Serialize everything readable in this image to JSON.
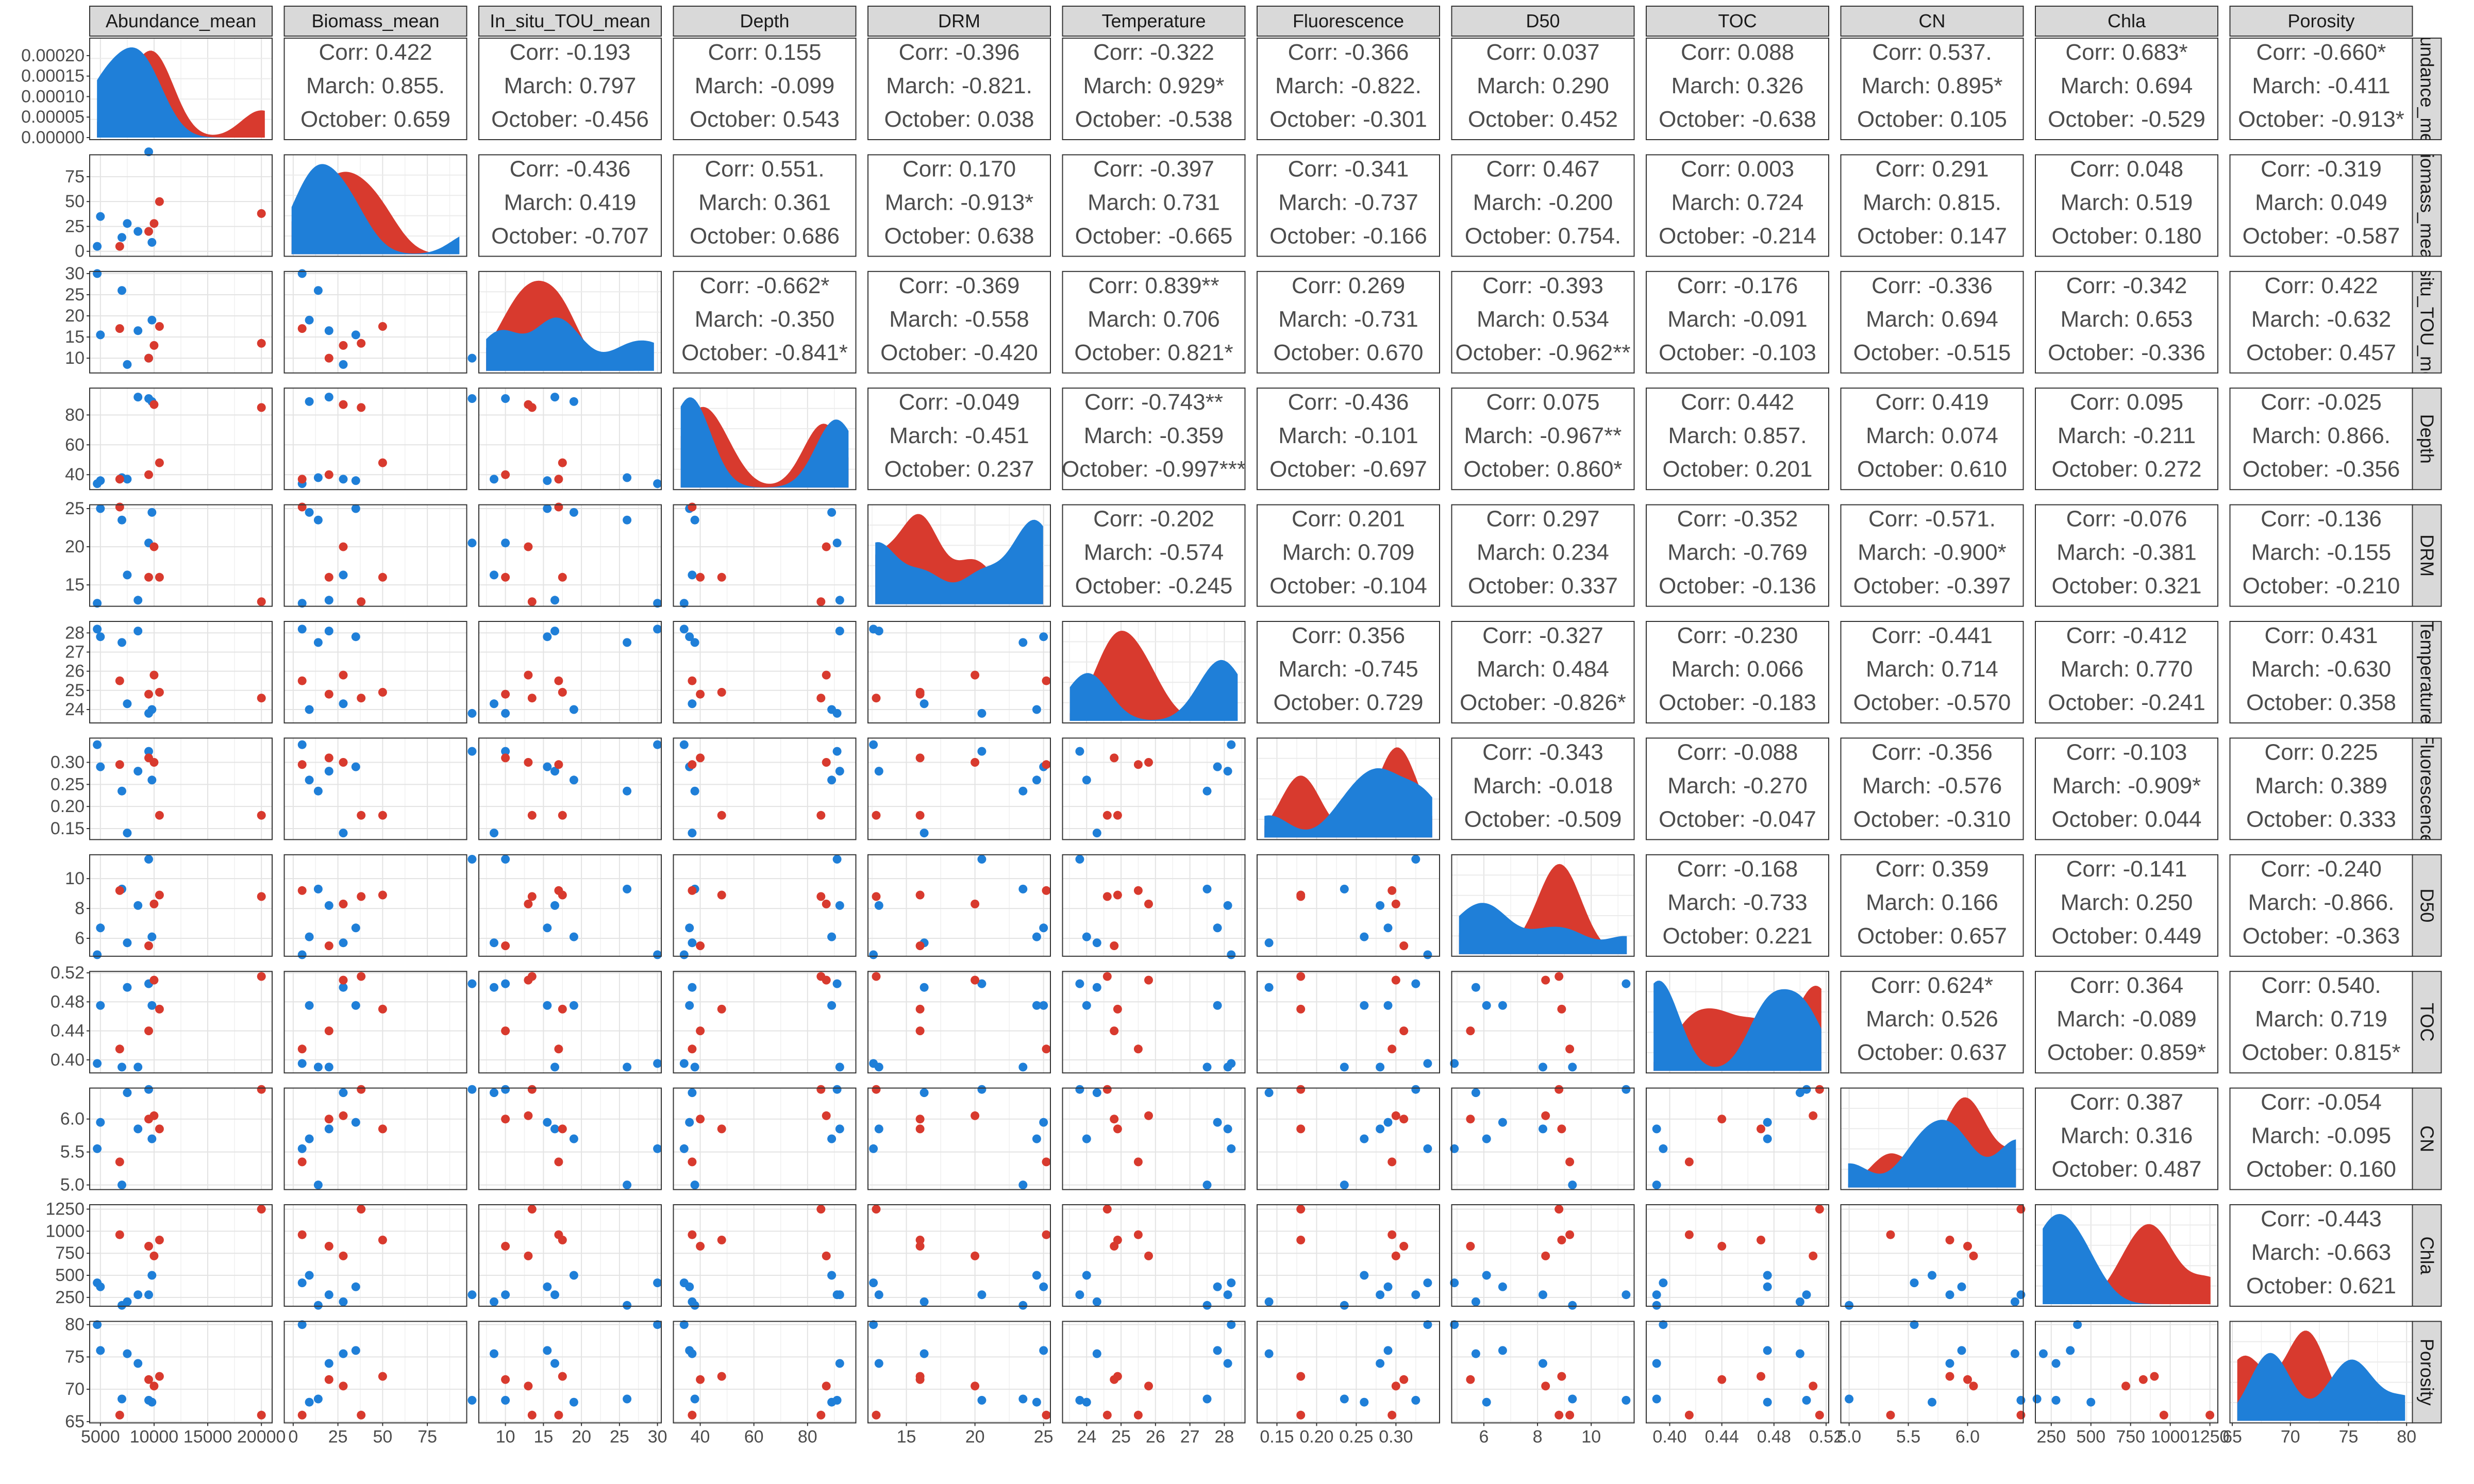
{
  "chart_data": {
    "type": "scatter",
    "title": "",
    "legend": "none",
    "grid": true,
    "groups": [
      {
        "key": "March",
        "color": "#d83a2e"
      },
      {
        "key": "October",
        "color": "#1f7fd8"
      }
    ],
    "variables": [
      {
        "name": "Abundance_mean",
        "row_label": "Abundance_mean",
        "range": [
          4000,
          21000
        ],
        "ticks": [
          5000,
          10000,
          15000,
          20000
        ],
        "tick_labels": [
          "5000",
          "10000",
          "15000",
          "20000"
        ]
      },
      {
        "name": "Biomass_mean",
        "row_label": "Biomass_mean",
        "range": [
          -5,
          97
        ],
        "ticks": [
          0,
          25,
          50,
          75
        ],
        "tick_labels": [
          "0",
          "25",
          "50",
          "75"
        ]
      },
      {
        "name": "In_situ_TOU_mean",
        "row_label": "In_situ_TOU_mean",
        "range": [
          6.5,
          30.5
        ],
        "ticks": [
          10,
          15,
          20,
          25,
          30
        ],
        "tick_labels": [
          "10",
          "15",
          "20",
          "25",
          "30"
        ]
      },
      {
        "name": "Depth",
        "row_label": "Depth",
        "range": [
          30,
          98
        ],
        "ticks": [
          40,
          60,
          80
        ],
        "tick_labels": [
          "40",
          "60",
          "80"
        ]
      },
      {
        "name": "DRM",
        "row_label": "DRM",
        "range": [
          12.2,
          25.5
        ],
        "ticks": [
          15,
          20,
          25
        ],
        "tick_labels": [
          "15",
          "20",
          "25"
        ]
      },
      {
        "name": "Temperature",
        "row_label": "Temperature",
        "range": [
          23.3,
          28.6
        ],
        "ticks": [
          24,
          25,
          26,
          27,
          28
        ],
        "tick_labels": [
          "24",
          "25",
          "26",
          "27",
          "28"
        ]
      },
      {
        "name": "Fluorescence",
        "row_label": "Fluorescence",
        "range": [
          0.125,
          0.355
        ],
        "ticks": [
          0.15,
          0.2,
          0.25,
          0.3
        ],
        "tick_labels": [
          "0.15",
          "0.20",
          "0.25",
          "0.30"
        ]
      },
      {
        "name": "D50",
        "row_label": "D50",
        "range": [
          4.8,
          11.6
        ],
        "ticks": [
          6,
          8,
          10
        ],
        "tick_labels": [
          "6",
          "8",
          "10"
        ]
      },
      {
        "name": "TOC",
        "row_label": "TOC",
        "range": [
          0.382,
          0.522
        ],
        "ticks": [
          0.4,
          0.44,
          0.48,
          0.52
        ],
        "tick_labels": [
          "0.40",
          "0.44",
          "0.48",
          "0.52"
        ]
      },
      {
        "name": "CN",
        "row_label": "CN",
        "range": [
          4.93,
          6.47
        ],
        "ticks": [
          5.0,
          5.5,
          6.0
        ],
        "tick_labels": [
          "5.0",
          "5.5",
          "6.0"
        ]
      },
      {
        "name": "Chla",
        "row_label": "Chla",
        "range": [
          150,
          1300
        ],
        "ticks": [
          250,
          500,
          750,
          1000,
          1250
        ],
        "tick_labels": [
          "250",
          "500",
          "750",
          "1000",
          "1250"
        ]
      },
      {
        "name": "Porosity",
        "row_label": "Porosity",
        "range": [
          64.8,
          80.5
        ],
        "ticks": [
          65,
          70,
          75,
          80
        ],
        "tick_labels": [
          "65",
          "70",
          "75",
          "80"
        ]
      }
    ],
    "density_y_ticks": [
      0,
      5e-05,
      0.0001,
      0.00015,
      0.0002
    ],
    "density_y_tick_labels": [
      "0.00000",
      "0.00005",
      "0.00010",
      "0.00015",
      "0.00020"
    ],
    "samples": [
      {
        "group": "October",
        "values": [
          4700,
          5,
          30,
          34,
          12.6,
          28.2,
          0.34,
          4.9,
          0.395,
          5.55,
          415,
          80
        ]
      },
      {
        "group": "October",
        "values": [
          5000,
          35,
          15.5,
          36,
          25,
          27.8,
          0.29,
          6.7,
          0.475,
          5.95,
          370,
          76
        ]
      },
      {
        "group": "October",
        "values": [
          7000,
          14,
          26,
          38,
          23.5,
          27.5,
          0.235,
          9.3,
          0.39,
          5.0,
          160,
          68.5
        ]
      },
      {
        "group": "October",
        "values": [
          7500,
          28,
          8.5,
          37,
          16.3,
          24.3,
          0.14,
          5.7,
          0.5,
          6.4,
          200,
          75.5
        ]
      },
      {
        "group": "October",
        "values": [
          8500,
          20,
          16.5,
          92,
          13,
          28.1,
          0.28,
          8.2,
          0.39,
          5.85,
          280,
          74
        ]
      },
      {
        "group": "October",
        "values": [
          9500,
          100,
          10,
          91,
          20.5,
          23.8,
          0.325,
          11.3,
          0.505,
          6.45,
          280,
          68.3
        ]
      },
      {
        "group": "October",
        "values": [
          9800,
          9,
          19,
          89,
          24.5,
          24,
          0.26,
          6.1,
          0.475,
          5.7,
          500,
          68
        ]
      },
      {
        "group": "March",
        "values": [
          6800,
          5,
          17,
          37,
          25.2,
          25.5,
          0.295,
          9.2,
          0.415,
          5.35,
          960,
          66
        ]
      },
      {
        "group": "March",
        "values": [
          9500,
          20,
          10,
          40,
          16,
          24.8,
          0.31,
          5.5,
          0.44,
          6.0,
          830,
          71.5
        ]
      },
      {
        "group": "March",
        "values": [
          10000,
          28,
          13,
          87,
          20,
          25.8,
          0.3,
          8.3,
          0.51,
          6.05,
          720,
          70.5
        ]
      },
      {
        "group": "March",
        "values": [
          10500,
          50,
          17.5,
          48,
          16,
          24.9,
          0.18,
          8.9,
          0.47,
          5.85,
          900,
          72
        ]
      },
      {
        "group": "March",
        "values": [
          20000,
          38,
          13.5,
          85,
          12.8,
          24.6,
          0.18,
          8.8,
          0.515,
          6.45,
          1250,
          66
        ]
      }
    ],
    "correlations": [
      {
        "row": 0,
        "col": 1,
        "lines": [
          "Corr: 0.422",
          "March: 0.855.",
          "October: 0.659"
        ]
      },
      {
        "row": 0,
        "col": 2,
        "lines": [
          "Corr: -0.193",
          "March: 0.797",
          "October: -0.456"
        ]
      },
      {
        "row": 0,
        "col": 3,
        "lines": [
          "Corr: 0.155",
          "March: -0.099",
          "October: 0.543"
        ]
      },
      {
        "row": 0,
        "col": 4,
        "lines": [
          "Corr: -0.396",
          "March: -0.821.",
          "October: 0.038"
        ]
      },
      {
        "row": 0,
        "col": 5,
        "lines": [
          "Corr: -0.322",
          "March: 0.929*",
          "October: -0.538"
        ]
      },
      {
        "row": 0,
        "col": 6,
        "lines": [
          "Corr: -0.366",
          "March: -0.822.",
          "October: -0.301"
        ]
      },
      {
        "row": 0,
        "col": 7,
        "lines": [
          "Corr: 0.037",
          "March: 0.290",
          "October: 0.452"
        ]
      },
      {
        "row": 0,
        "col": 8,
        "lines": [
          "Corr: 0.088",
          "March: 0.326",
          "October: -0.638"
        ]
      },
      {
        "row": 0,
        "col": 9,
        "lines": [
          "Corr: 0.537.",
          "March: 0.895*",
          "October: 0.105"
        ]
      },
      {
        "row": 0,
        "col": 10,
        "lines": [
          "Corr: 0.683*",
          "March: 0.694",
          "October: -0.529"
        ]
      },
      {
        "row": 0,
        "col": 11,
        "lines": [
          "Corr: -0.660*",
          "March: -0.411",
          "October: -0.913*"
        ]
      },
      {
        "row": 1,
        "col": 2,
        "lines": [
          "Corr: -0.436",
          "March: 0.419",
          "October: -0.707"
        ]
      },
      {
        "row": 1,
        "col": 3,
        "lines": [
          "Corr: 0.551.",
          "March: 0.361",
          "October: 0.686"
        ]
      },
      {
        "row": 1,
        "col": 4,
        "lines": [
          "Corr: 0.170",
          "March: -0.913*",
          "October: 0.638"
        ]
      },
      {
        "row": 1,
        "col": 5,
        "lines": [
          "Corr: -0.397",
          "March: 0.731",
          "October: -0.665"
        ]
      },
      {
        "row": 1,
        "col": 6,
        "lines": [
          "Corr: -0.341",
          "March: -0.737",
          "October: -0.166"
        ]
      },
      {
        "row": 1,
        "col": 7,
        "lines": [
          "Corr: 0.467",
          "March: -0.200",
          "October: 0.754."
        ]
      },
      {
        "row": 1,
        "col": 8,
        "lines": [
          "Corr: 0.003",
          "March: 0.724",
          "October: -0.214"
        ]
      },
      {
        "row": 1,
        "col": 9,
        "lines": [
          "Corr: 0.291",
          "March: 0.815.",
          "October: 0.147"
        ]
      },
      {
        "row": 1,
        "col": 10,
        "lines": [
          "Corr: 0.048",
          "March: 0.519",
          "October: 0.180"
        ]
      },
      {
        "row": 1,
        "col": 11,
        "lines": [
          "Corr: -0.319",
          "March: 0.049",
          "October: -0.587"
        ]
      },
      {
        "row": 2,
        "col": 3,
        "lines": [
          "Corr: -0.662*",
          "March: -0.350",
          "October: -0.841*"
        ]
      },
      {
        "row": 2,
        "col": 4,
        "lines": [
          "Corr: -0.369",
          "March: -0.558",
          "October: -0.420"
        ]
      },
      {
        "row": 2,
        "col": 5,
        "lines": [
          "Corr: 0.839**",
          "March: 0.706",
          "October: 0.821*"
        ]
      },
      {
        "row": 2,
        "col": 6,
        "lines": [
          "Corr: 0.269",
          "March: -0.731",
          "October: 0.670"
        ]
      },
      {
        "row": 2,
        "col": 7,
        "lines": [
          "Corr: -0.393",
          "March: 0.534",
          "October: -0.962**"
        ]
      },
      {
        "row": 2,
        "col": 8,
        "lines": [
          "Corr: -0.176",
          "March: -0.091",
          "October: -0.103"
        ]
      },
      {
        "row": 2,
        "col": 9,
        "lines": [
          "Corr: -0.336",
          "March: 0.694",
          "October: -0.515"
        ]
      },
      {
        "row": 2,
        "col": 10,
        "lines": [
          "Corr: -0.342",
          "March: 0.653",
          "October: -0.336"
        ]
      },
      {
        "row": 2,
        "col": 11,
        "lines": [
          "Corr: 0.422",
          "March: -0.632",
          "October: 0.457"
        ]
      },
      {
        "row": 3,
        "col": 4,
        "lines": [
          "Corr: -0.049",
          "March: -0.451",
          "October: 0.237"
        ]
      },
      {
        "row": 3,
        "col": 5,
        "lines": [
          "Corr: -0.743**",
          "March: -0.359",
          "October: -0.997***"
        ]
      },
      {
        "row": 3,
        "col": 6,
        "lines": [
          "Corr: -0.436",
          "March: -0.101",
          "October: -0.697"
        ]
      },
      {
        "row": 3,
        "col": 7,
        "lines": [
          "Corr: 0.075",
          "March: -0.967**",
          "October: 0.860*"
        ]
      },
      {
        "row": 3,
        "col": 8,
        "lines": [
          "Corr: 0.442",
          "March: 0.857.",
          "October: 0.201"
        ]
      },
      {
        "row": 3,
        "col": 9,
        "lines": [
          "Corr: 0.419",
          "March: 0.074",
          "October: 0.610"
        ]
      },
      {
        "row": 3,
        "col": 10,
        "lines": [
          "Corr: 0.095",
          "March: -0.211",
          "October: 0.272"
        ]
      },
      {
        "row": 3,
        "col": 11,
        "lines": [
          "Corr: -0.025",
          "March: 0.866.",
          "October: -0.356"
        ]
      },
      {
        "row": 4,
        "col": 5,
        "lines": [
          "Corr: -0.202",
          "March: -0.574",
          "October: -0.245"
        ]
      },
      {
        "row": 4,
        "col": 6,
        "lines": [
          "Corr: 0.201",
          "March: 0.709",
          "October: -0.104"
        ]
      },
      {
        "row": 4,
        "col": 7,
        "lines": [
          "Corr: 0.297",
          "March: 0.234",
          "October: 0.337"
        ]
      },
      {
        "row": 4,
        "col": 8,
        "lines": [
          "Corr: -0.352",
          "March: -0.769",
          "October: -0.136"
        ]
      },
      {
        "row": 4,
        "col": 9,
        "lines": [
          "Corr: -0.571.",
          "March: -0.900*",
          "October: -0.397"
        ]
      },
      {
        "row": 4,
        "col": 10,
        "lines": [
          "Corr: -0.076",
          "March: -0.381",
          "October: 0.321"
        ]
      },
      {
        "row": 4,
        "col": 11,
        "lines": [
          "Corr: -0.136",
          "March: -0.155",
          "October: -0.210"
        ]
      },
      {
        "row": 5,
        "col": 6,
        "lines": [
          "Corr: 0.356",
          "March: -0.745",
          "October: 0.729"
        ]
      },
      {
        "row": 5,
        "col": 7,
        "lines": [
          "Corr: -0.327",
          "March: 0.484",
          "October: -0.826*"
        ]
      },
      {
        "row": 5,
        "col": 8,
        "lines": [
          "Corr: -0.230",
          "March: 0.066",
          "October: -0.183"
        ]
      },
      {
        "row": 5,
        "col": 9,
        "lines": [
          "Corr: -0.441",
          "March: 0.714",
          "October: -0.570"
        ]
      },
      {
        "row": 5,
        "col": 10,
        "lines": [
          "Corr: -0.412",
          "March: 0.770",
          "October: -0.241"
        ]
      },
      {
        "row": 5,
        "col": 11,
        "lines": [
          "Corr: 0.431",
          "March: -0.630",
          "October: 0.358"
        ]
      },
      {
        "row": 6,
        "col": 7,
        "lines": [
          "Corr: -0.343",
          "March: -0.018",
          "October: -0.509"
        ]
      },
      {
        "row": 6,
        "col": 8,
        "lines": [
          "Corr: -0.088",
          "March: -0.270",
          "October: -0.047"
        ]
      },
      {
        "row": 6,
        "col": 9,
        "lines": [
          "Corr: -0.356",
          "March: -0.576",
          "October: -0.310"
        ]
      },
      {
        "row": 6,
        "col": 10,
        "lines": [
          "Corr: -0.103",
          "March: -0.909*",
          "October: 0.044"
        ]
      },
      {
        "row": 6,
        "col": 11,
        "lines": [
          "Corr: 0.225",
          "March: 0.389",
          "October: 0.333"
        ]
      },
      {
        "row": 7,
        "col": 8,
        "lines": [
          "Corr: -0.168",
          "March: -0.733",
          "October: 0.221"
        ]
      },
      {
        "row": 7,
        "col": 9,
        "lines": [
          "Corr: 0.359",
          "March: 0.166",
          "October: 0.657"
        ]
      },
      {
        "row": 7,
        "col": 10,
        "lines": [
          "Corr: -0.141",
          "March: 0.250",
          "October: 0.449"
        ]
      },
      {
        "row": 7,
        "col": 11,
        "lines": [
          "Corr: -0.240",
          "March: -0.866.",
          "October: -0.363"
        ]
      },
      {
        "row": 8,
        "col": 9,
        "lines": [
          "Corr: 0.624*",
          "March: 0.526",
          "October: 0.637"
        ]
      },
      {
        "row": 8,
        "col": 10,
        "lines": [
          "Corr: 0.364",
          "March: -0.089",
          "October: 0.859*"
        ]
      },
      {
        "row": 8,
        "col": 11,
        "lines": [
          "Corr: 0.540.",
          "March: 0.719",
          "October: 0.815*"
        ]
      },
      {
        "row": 9,
        "col": 10,
        "lines": [
          "Corr: 0.387",
          "March: 0.316",
          "October: 0.487"
        ]
      },
      {
        "row": 9,
        "col": 11,
        "lines": [
          "Corr: -0.054",
          "March: -0.095",
          "October: 0.160"
        ]
      },
      {
        "row": 10,
        "col": 11,
        "lines": [
          "Corr: -0.443",
          "March: -0.663",
          "October: 0.621"
        ]
      }
    ]
  }
}
